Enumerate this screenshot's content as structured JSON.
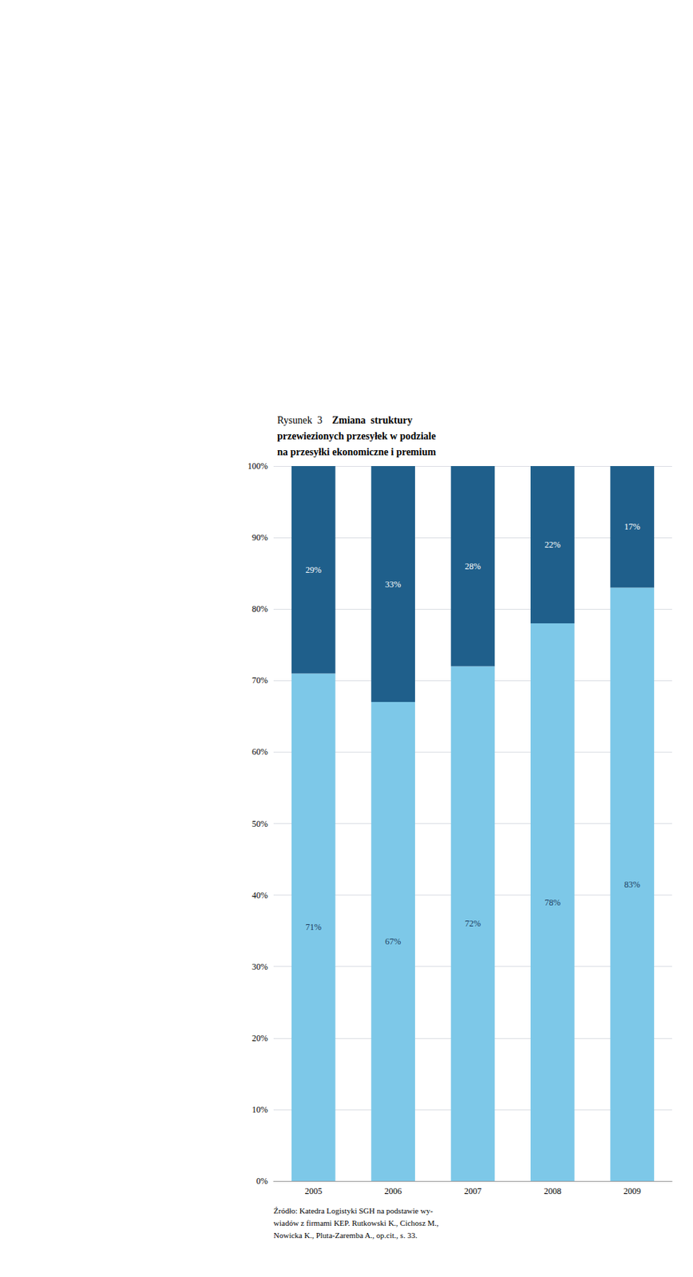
{
  "chart_data": {
    "type": "bar",
    "stacked": true,
    "title": "Rysunek  3",
    "subtitle": "Zmiana  struktury\nprzewiezionych przesyłek w podziale\nna przesyłki ekonomiczne i premium",
    "annotations": [
      "Źródło: Katedra Logistyki SGH na podstawie wy-\nwiadów z firmami KEP. Rutkowski K., Cichosz M.,\nNowicka K., Pluta-Zaremba A., op.cit., s. 33."
    ],
    "categories": [
      "2005",
      "2006",
      "2007",
      "2008",
      "2009"
    ],
    "series": [
      {
        "color": "#7DC8E8",
        "values": [
          71,
          67,
          72,
          78,
          83
        ],
        "value_labels": [
          "71%",
          "67%",
          "72%",
          "78%",
          "83%"
        ]
      },
      {
        "color": "#1F5F8B",
        "values": [
          29,
          33,
          28,
          22,
          17
        ],
        "value_labels": [
          "29%",
          "33%",
          "28%",
          "22%",
          "17%"
        ]
      }
    ],
    "data_labels": true,
    "ylim": [
      0,
      100
    ],
    "yticks": [
      {
        "value": 0,
        "label": "0%"
      },
      {
        "value": 10,
        "label": "10%"
      },
      {
        "value": 20,
        "label": "20%"
      },
      {
        "value": 30,
        "label": "30%"
      },
      {
        "value": 40,
        "label": "40%"
      },
      {
        "value": 50,
        "label": "50%"
      },
      {
        "value": 60,
        "label": "60%"
      },
      {
        "value": 70,
        "label": "70%"
      },
      {
        "value": 80,
        "label": "80%"
      },
      {
        "value": 90,
        "label": "90%"
      },
      {
        "value": 100,
        "label": "100%"
      }
    ],
    "grid": true
  }
}
